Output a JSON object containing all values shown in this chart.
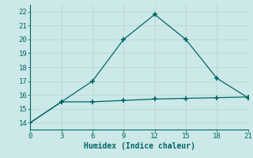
{
  "xlabel": "Humidex (Indice chaleur)",
  "x_line1": [
    0,
    3,
    6,
    9,
    12,
    15,
    18,
    21
  ],
  "y_line1": [
    14,
    15.5,
    17,
    20,
    21.8,
    20,
    17.2,
    15.8
  ],
  "x_line2": [
    0,
    3,
    6,
    9,
    12,
    15,
    18,
    21
  ],
  "y_line2": [
    14,
    15.5,
    15.5,
    15.6,
    15.7,
    15.75,
    15.8,
    15.85
  ],
  "line_color": "#006666",
  "background_color": "#cce8e8",
  "grid_color": "#c0d8d8",
  "xlim": [
    0,
    21
  ],
  "ylim": [
    13.5,
    22.5
  ],
  "xticks": [
    0,
    3,
    6,
    9,
    12,
    15,
    18,
    21
  ],
  "yticks": [
    14,
    15,
    16,
    17,
    18,
    19,
    20,
    21,
    22
  ],
  "marker": "+",
  "markersize": 5,
  "markeredgewidth": 1.2,
  "linewidth": 0.9,
  "tick_color": "#006666",
  "label_color": "#006666",
  "tick_fontsize": 6.5,
  "xlabel_fontsize": 7
}
